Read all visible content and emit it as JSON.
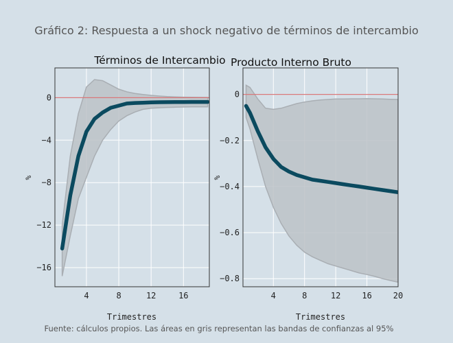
{
  "title": "Gráfico 2: Respuesta a un shock negativo de términos de intercambio",
  "source_note": "Fuente: cálculos propios.  Las áreas en gris representan las bandas de confianzas al 95%",
  "colors": {
    "background": "#d5e0e8",
    "plot_background": "#d5e0e8",
    "grid": "#ffffff",
    "zero_line": "#d9787a",
    "response_line": "#0b4a5f",
    "band_fill": "#bcc2c7",
    "band_edge": "#a9aeb3",
    "axis": "#333333",
    "title_text": "#555555",
    "panel_title_text": "#111111"
  },
  "chart_data": [
    {
      "type": "area",
      "title": "Términos de Intercambio",
      "xlabel": "Trimestres",
      "ylabel": "%",
      "xlim": [
        0.1,
        19.2
      ],
      "ylim": [
        -17.8,
        2.8
      ],
      "xticks": [
        4,
        8,
        12,
        16
      ],
      "yticks": [
        -16,
        -12,
        -8,
        -4,
        0
      ],
      "ytick_labels": [
        "−16",
        "−12",
        "−8",
        "−4",
        "0"
      ],
      "grid": true,
      "zero_line": true,
      "x": [
        1,
        2,
        3,
        4,
        5,
        6,
        7,
        8,
        9,
        10,
        11,
        12,
        13,
        14,
        15,
        16,
        17,
        18,
        19
      ],
      "series": [
        {
          "role": "response",
          "values": [
            -14.2,
            -9.2,
            -5.5,
            -3.2,
            -2.0,
            -1.4,
            -0.95,
            -0.75,
            -0.55,
            -0.5,
            -0.48,
            -0.45,
            -0.43,
            -0.42,
            -0.41,
            -0.41,
            -0.4,
            -0.4,
            -0.4
          ]
        },
        {
          "role": "band_upper",
          "values": [
            -12.0,
            -5.5,
            -1.5,
            1.0,
            1.7,
            1.6,
            1.2,
            0.8,
            0.55,
            0.4,
            0.3,
            0.22,
            0.15,
            0.1,
            0.07,
            0.05,
            0.04,
            0.03,
            0.02
          ]
        },
        {
          "role": "band_lower",
          "values": [
            -16.8,
            -13.0,
            -9.5,
            -7.5,
            -5.5,
            -4.0,
            -3.0,
            -2.2,
            -1.7,
            -1.35,
            -1.1,
            -1.0,
            -0.95,
            -0.92,
            -0.9,
            -0.88,
            -0.87,
            -0.86,
            -0.86
          ]
        }
      ]
    },
    {
      "type": "area",
      "title": "Producto Interno Bruto",
      "xlabel": "Trimestres",
      "ylabel": "%",
      "xlim": [
        0.1,
        20
      ],
      "ylim": [
        -0.835,
        0.115
      ],
      "xticks": [
        4,
        8,
        12,
        16,
        20
      ],
      "yticks": [
        -0.8,
        -0.6,
        -0.4,
        -0.2,
        0
      ],
      "ytick_labels": [
        "−0.8",
        "−0.6",
        "−0.4",
        "−0.2",
        "0"
      ],
      "grid": true,
      "zero_line": true,
      "x": [
        0.5,
        1,
        2,
        3,
        4,
        5,
        6,
        7,
        8,
        9,
        10,
        11,
        12,
        13,
        14,
        15,
        16,
        17,
        18,
        19,
        20
      ],
      "series": [
        {
          "role": "response",
          "values": [
            -0.05,
            -0.08,
            -0.16,
            -0.23,
            -0.28,
            -0.315,
            -0.335,
            -0.35,
            -0.36,
            -0.37,
            -0.375,
            -0.38,
            -0.385,
            -0.39,
            -0.395,
            -0.4,
            -0.405,
            -0.41,
            -0.415,
            -0.42,
            -0.425
          ]
        },
        {
          "role": "band_upper",
          "values": [
            0.04,
            0.03,
            -0.02,
            -0.06,
            -0.065,
            -0.06,
            -0.05,
            -0.04,
            -0.033,
            -0.028,
            -0.024,
            -0.022,
            -0.02,
            -0.02,
            -0.019,
            -0.019,
            -0.018,
            -0.019,
            -0.02,
            -0.021,
            -0.022
          ]
        },
        {
          "role": "band_lower",
          "values": [
            -0.1,
            -0.15,
            -0.28,
            -0.4,
            -0.49,
            -0.56,
            -0.615,
            -0.655,
            -0.685,
            -0.705,
            -0.72,
            -0.735,
            -0.745,
            -0.755,
            -0.765,
            -0.775,
            -0.782,
            -0.79,
            -0.8,
            -0.808,
            -0.815
          ]
        }
      ]
    }
  ]
}
